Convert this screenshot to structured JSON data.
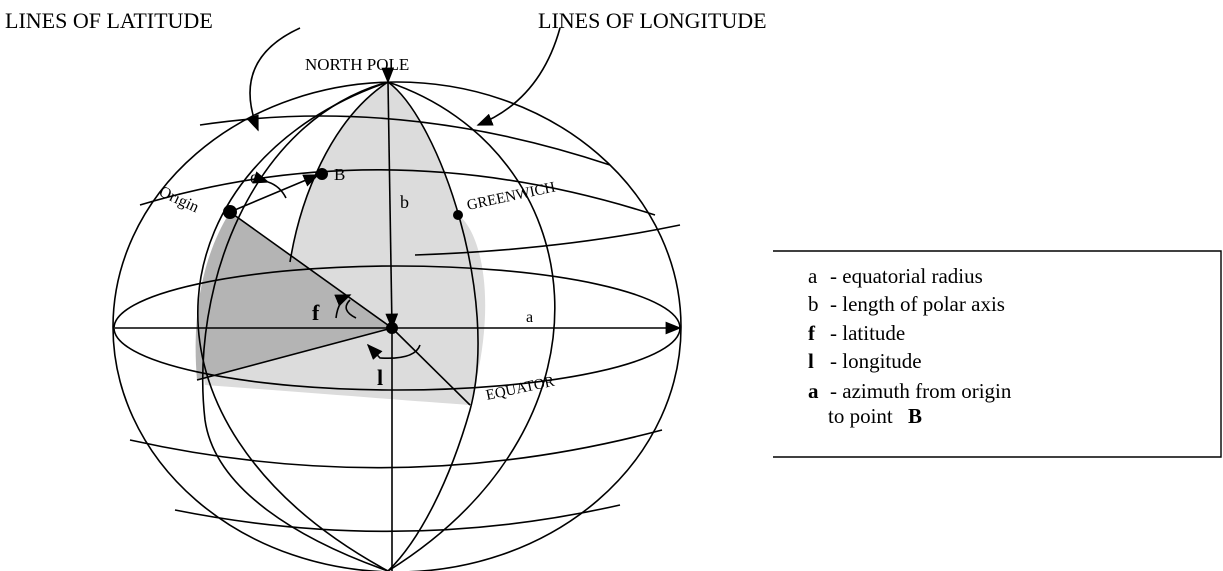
{
  "labels": {
    "lines_of_latitude": "LINES OF LATITUDE",
    "lines_of_longitude": "LINES OF LONGITUDE",
    "north_pole": "NORTH POLE",
    "origin": "Origin",
    "point_b": "B",
    "alpha": "α",
    "b": "b",
    "greenwich": "GREENWICH",
    "phi": "f",
    "a": "a",
    "lambda": "l",
    "equator": "EQUATOR"
  },
  "legend": {
    "items": [
      {
        "symbol": "a",
        "text": "- equatorial radius"
      },
      {
        "symbol": "b",
        "text": "- length of polar axis"
      },
      {
        "symbol": "f",
        "text": "- latitude"
      },
      {
        "symbol": "l",
        "text": "- longitude"
      },
      {
        "symbol": "a",
        "text": "- azimuth from origin",
        "continuation": "to point",
        "point": "B"
      }
    ]
  }
}
